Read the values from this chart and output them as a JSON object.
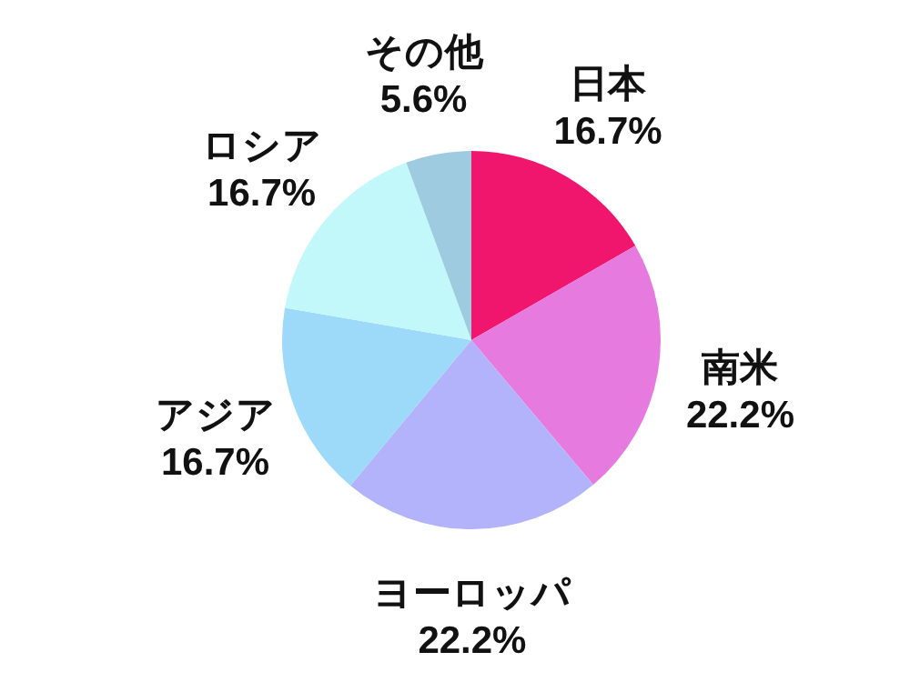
{
  "chart_data": {
    "type": "pie",
    "categories": [
      "日本",
      "南米",
      "ヨーロッパ",
      "アジア",
      "ロシア",
      "その他"
    ],
    "values": [
      16.7,
      22.2,
      22.2,
      16.7,
      16.7,
      5.6
    ],
    "colors": [
      "#f0166e",
      "#e67adf",
      "#b3b3fb",
      "#9dd9f8",
      "#c3f8fb",
      "#9fcbe0"
    ],
    "value_labels": [
      "16.7%",
      "22.2%",
      "22.2%",
      "16.7%",
      "16.7%",
      "5.6%"
    ]
  }
}
